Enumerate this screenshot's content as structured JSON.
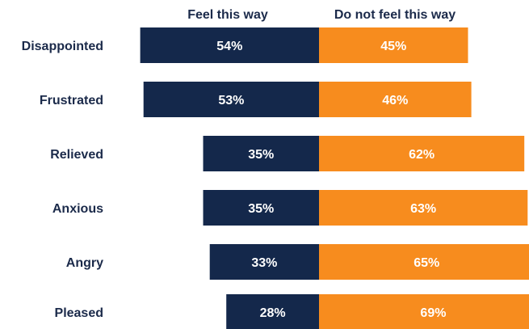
{
  "chart_data": {
    "type": "bar",
    "orientation": "diverging-horizontal",
    "legend_headers": [
      "Feel this way",
      "Do not feel this way"
    ],
    "categories": [
      "Disappointed",
      "Frustrated",
      "Relieved",
      "Anxious",
      "Angry",
      "Pleased"
    ],
    "series": [
      {
        "name": "Feel this way",
        "values": [
          54,
          53,
          35,
          35,
          33,
          28
        ],
        "labels": [
          "54%",
          "53%",
          "35%",
          "35%",
          "33%",
          "28%"
        ],
        "color": "#14284b"
      },
      {
        "name": "Do not feel this way",
        "values": [
          45,
          46,
          62,
          63,
          65,
          69
        ],
        "labels": [
          "45%",
          "46%",
          "62%",
          "63%",
          "65%",
          "69%"
        ],
        "color": "#f78c1e"
      }
    ],
    "value_unit": "%"
  }
}
